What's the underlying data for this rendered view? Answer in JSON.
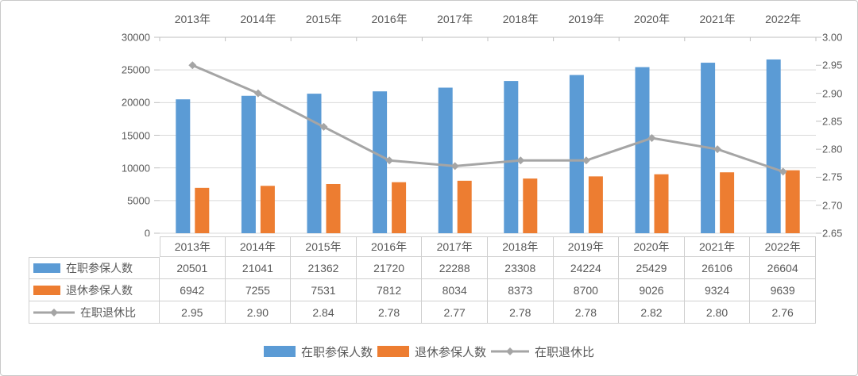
{
  "chart_data": {
    "type": "bar",
    "subtype": "clustered-bar-with-line",
    "title": "",
    "categories": [
      "2013年",
      "2014年",
      "2015年",
      "2016年",
      "2017年",
      "2018年",
      "2019年",
      "2020年",
      "2021年",
      "2022年"
    ],
    "series": [
      {
        "name": "在职参保人数",
        "type": "bar",
        "axis": "left",
        "color": "#5B9BD5",
        "values": [
          20501,
          21041,
          21362,
          21720,
          22288,
          23308,
          24224,
          25429,
          26106,
          26604
        ]
      },
      {
        "name": "退休参保人数",
        "type": "bar",
        "axis": "left",
        "color": "#ED7D31",
        "values": [
          6942,
          7255,
          7531,
          7812,
          8034,
          8373,
          8700,
          9026,
          9324,
          9639
        ]
      },
      {
        "name": "在职退休比",
        "type": "line",
        "axis": "right",
        "color": "#A5A5A5",
        "values": [
          "2.95",
          "2.90",
          "2.84",
          "2.78",
          "2.77",
          "2.78",
          "2.78",
          "2.82",
          "2.80",
          "2.76"
        ]
      }
    ],
    "left_axis": {
      "min": 0,
      "max": 30000,
      "tick_labels": [
        "30000",
        "25000",
        "20000",
        "15000",
        "10000",
        "5000",
        "0"
      ]
    },
    "right_axis": {
      "min": 2.65,
      "max": 3.0,
      "tick_labels": [
        "3.00",
        "2.95",
        "2.90",
        "2.85",
        "2.80",
        "2.75",
        "2.70",
        "2.65"
      ]
    },
    "grid": true,
    "gridline_color": "#D9D9D9",
    "axis_line_color": "#BFBFBF",
    "text_color": "#595959",
    "legend_position": "bottom",
    "data_table_shown": true
  }
}
